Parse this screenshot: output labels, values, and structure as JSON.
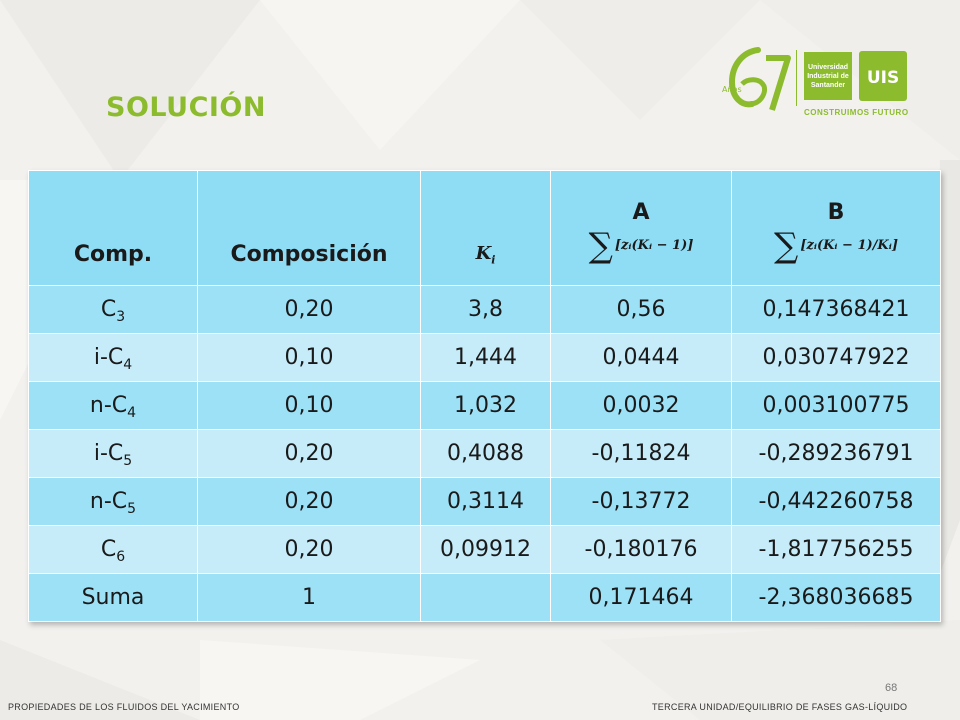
{
  "slide": {
    "title": "SOLUCIÓN",
    "page_number": "68",
    "footer_left": "PROPIEDADES DE LOS FLUIDOS DEL YACIMIENTO",
    "footer_right": "TERCERA UNIDAD/EQUILIBRIO  DE FASES GAS-LÍQUIDO"
  },
  "logo": {
    "anniversary": "67",
    "anniversary_sub": "Años",
    "university_name": "Universidad Industrial de Santander",
    "emblem": "UIS",
    "tagline": "CONSTRUIMOS FUTURO"
  },
  "table": {
    "headers": {
      "comp": "Comp.",
      "composicion": "Composición",
      "k_symbol": "K",
      "k_sub": "i",
      "a_letter": "A",
      "a_formula": "[zᵢ(Kᵢ − 1)]",
      "b_letter": "B",
      "b_formula": "[zᵢ(Kᵢ − 1)/Kᵢ]"
    },
    "rows": [
      {
        "comp_base": "C",
        "comp_sub": "3",
        "composicion": "0,20",
        "k": "3,8",
        "a": "0,56",
        "b": "0,147368421"
      },
      {
        "comp_base": "i-C",
        "comp_sub": "4",
        "composicion": "0,10",
        "k": "1,444",
        "a": "0,0444",
        "b": "0,030747922"
      },
      {
        "comp_base": "n-C",
        "comp_sub": "4",
        "composicion": "0,10",
        "k": "1,032",
        "a": "0,0032",
        "b": "0,003100775"
      },
      {
        "comp_base": "i-C",
        "comp_sub": "5",
        "composicion": "0,20",
        "k": "0,4088",
        "a": "-0,11824",
        "b": "-0,289236791"
      },
      {
        "comp_base": "n-C",
        "comp_sub": "5",
        "composicion": "0,20",
        "k": "0,3114",
        "a": "-0,13772",
        "b": "-0,442260758"
      },
      {
        "comp_base": "C",
        "comp_sub": "6",
        "composicion": "0,20",
        "k": "0,09912",
        "a": "-0,180176",
        "b": "-1,817756255"
      },
      {
        "comp_base": "Suma",
        "comp_sub": "",
        "composicion": "1",
        "k": "",
        "a": "0,171464",
        "b": "-2,368036685"
      }
    ]
  },
  "colors": {
    "accent_green": "#8cbc2e",
    "table_header": "#8fdcf5",
    "table_row": "#9de1f7",
    "table_row_alt": "#c6ecf9"
  }
}
